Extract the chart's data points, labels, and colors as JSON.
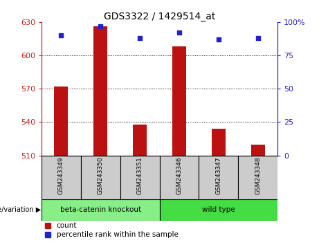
{
  "title": "GDS3322 / 1429514_at",
  "samples": [
    "GSM243349",
    "GSM243350",
    "GSM243351",
    "GSM243346",
    "GSM243347",
    "GSM243348"
  ],
  "counts": [
    572,
    626,
    538,
    608,
    534,
    520
  ],
  "percentile_ranks": [
    90,
    97,
    88,
    92,
    87,
    88
  ],
  "ylim_left": [
    510,
    630
  ],
  "ylim_right": [
    0,
    100
  ],
  "yticks_left": [
    510,
    540,
    570,
    600,
    630
  ],
  "yticks_right": [
    0,
    25,
    50,
    75,
    100
  ],
  "ytick_labels_right": [
    "0",
    "25",
    "50",
    "75",
    "100%"
  ],
  "bar_color": "#bb1111",
  "dot_color": "#2222cc",
  "bar_bottom": 510,
  "bar_width": 0.35,
  "groups": [
    {
      "label": "beta-catenin knockout",
      "indices": [
        0,
        1,
        2
      ],
      "color": "#88ee88"
    },
    {
      "label": "wild type",
      "indices": [
        3,
        4,
        5
      ],
      "color": "#44dd44"
    }
  ],
  "group_row_label": "genotype/variation",
  "legend_count_label": "count",
  "legend_percentile_label": "percentile rank within the sample",
  "axis_left_color": "#cc2222",
  "axis_right_color": "#2222cc",
  "sample_cell_color": "#cccccc",
  "fig_width": 4.61,
  "fig_height": 3.54
}
